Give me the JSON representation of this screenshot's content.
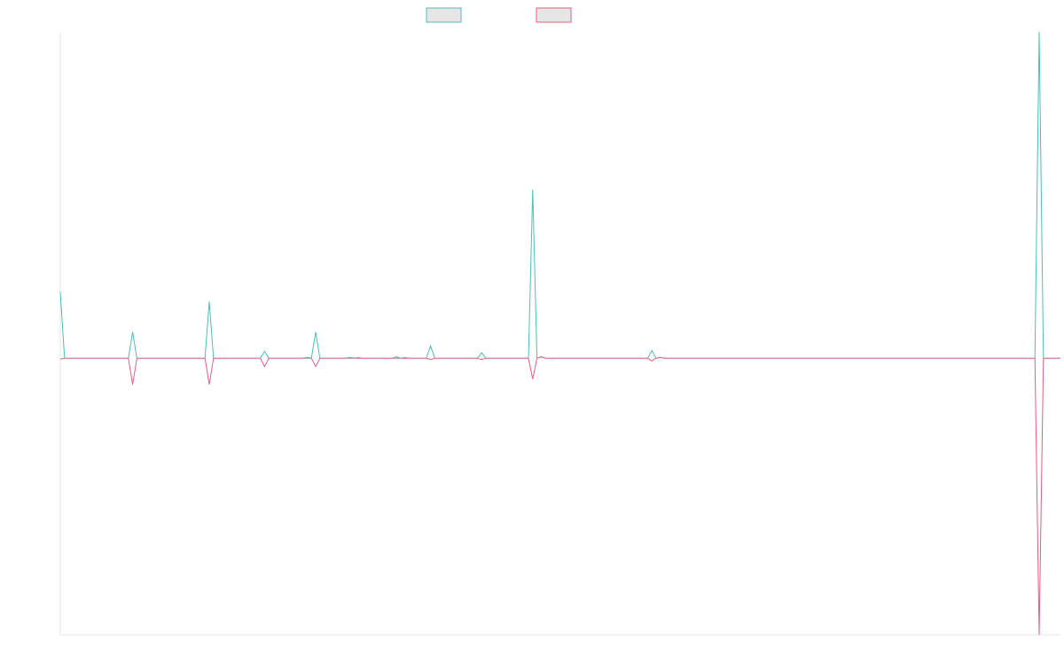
{
  "chart_data": {
    "type": "line",
    "title": "",
    "xlabel": "",
    "ylabel": "",
    "grid": false,
    "legend_position": "top-center",
    "x_count": 236,
    "ylim": [
      -1,
      1.18
    ],
    "colors": {
      "teal": "#4bbfbf",
      "pink": "#f2577f",
      "legend_fill": "#e6e6e6"
    },
    "series": [
      {
        "color_key": "teal",
        "spikes": [
          {
            "x": 0,
            "y": 0.24
          },
          {
            "x": 17,
            "y": 0.095
          },
          {
            "x": 35,
            "y": 0.205
          },
          {
            "x": 48,
            "y": 0.025
          },
          {
            "x": 60,
            "y": 0.095
          },
          {
            "x": 70,
            "y": 0.003
          },
          {
            "x": 81,
            "y": 0.003
          },
          {
            "x": 87,
            "y": 0.045
          },
          {
            "x": 99,
            "y": 0.02
          },
          {
            "x": 111,
            "y": 0.61
          },
          {
            "x": 113,
            "y": 0.006
          },
          {
            "x": 139,
            "y": 0.028
          },
          {
            "x": 141,
            "y": 0.003
          },
          {
            "x": 230,
            "y": 1.18
          }
        ]
      },
      {
        "color_key": "pink",
        "spikes": [
          {
            "x": 0,
            "y": -0.003
          },
          {
            "x": 17,
            "y": -0.095
          },
          {
            "x": 35,
            "y": -0.095
          },
          {
            "x": 48,
            "y": -0.03
          },
          {
            "x": 58,
            "y": 0.003
          },
          {
            "x": 60,
            "y": -0.03
          },
          {
            "x": 68,
            "y": 0.003
          },
          {
            "x": 79,
            "y": 0.005
          },
          {
            "x": 87,
            "y": -0.005
          },
          {
            "x": 99,
            "y": -0.005
          },
          {
            "x": 111,
            "y": -0.075
          },
          {
            "x": 113,
            "y": 0.005
          },
          {
            "x": 139,
            "y": -0.01
          },
          {
            "x": 141,
            "y": 0.003
          },
          {
            "x": 230,
            "y": -1.0
          }
        ]
      }
    ]
  }
}
